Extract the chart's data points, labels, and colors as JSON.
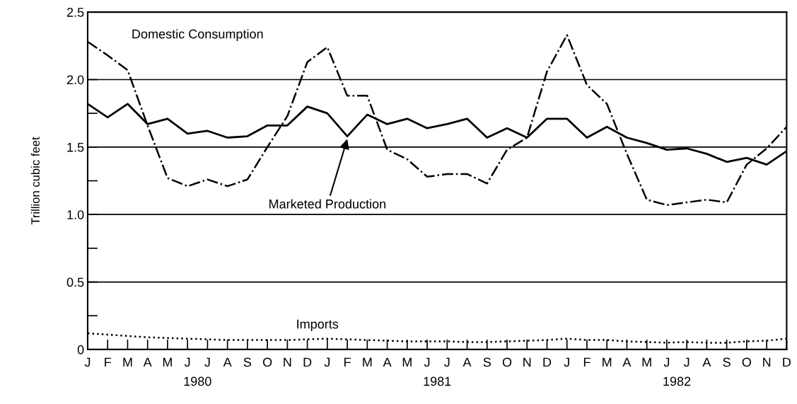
{
  "chart_data": {
    "type": "line",
    "ylabel": "Trillion cubic feet",
    "categories": [
      "J",
      "F",
      "M",
      "A",
      "M",
      "J",
      "J",
      "A",
      "S",
      "O",
      "N",
      "D",
      "J",
      "F",
      "M",
      "A",
      "M",
      "J",
      "J",
      "A",
      "S",
      "O",
      "N",
      "D",
      "J",
      "F",
      "M",
      "A",
      "M",
      "J",
      "J",
      "A",
      "S",
      "O",
      "N",
      "D"
    ],
    "series": [
      {
        "name": "Domestic Consumption",
        "color": "#000000",
        "line_style": "dashdot",
        "values": [
          2.28,
          2.18,
          2.07,
          1.66,
          1.27,
          1.21,
          1.26,
          1.21,
          1.26,
          1.5,
          1.73,
          2.13,
          2.24,
          1.88,
          1.88,
          1.48,
          1.41,
          1.28,
          1.3,
          1.3,
          1.23,
          1.48,
          1.57,
          2.06,
          2.33,
          1.96,
          1.82,
          1.45,
          1.11,
          1.07,
          1.09,
          1.11,
          1.09,
          1.37,
          1.49,
          1.65
        ]
      },
      {
        "name": "Marketed Production",
        "color": "#000000",
        "line_style": "solid",
        "values": [
          1.82,
          1.72,
          1.82,
          1.67,
          1.71,
          1.6,
          1.62,
          1.57,
          1.58,
          1.66,
          1.66,
          1.8,
          1.75,
          1.58,
          1.74,
          1.67,
          1.71,
          1.64,
          1.67,
          1.71,
          1.57,
          1.64,
          1.57,
          1.71,
          1.71,
          1.57,
          1.65,
          1.57,
          1.53,
          1.48,
          1.49,
          1.45,
          1.39,
          1.42,
          1.37,
          1.47
        ]
      },
      {
        "name": "Imports",
        "color": "#000000",
        "line_style": "dotted",
        "values": [
          0.12,
          0.11,
          0.1,
          0.09,
          0.085,
          0.08,
          0.075,
          0.07,
          0.07,
          0.07,
          0.07,
          0.075,
          0.08,
          0.075,
          0.07,
          0.065,
          0.06,
          0.06,
          0.06,
          0.055,
          0.055,
          0.06,
          0.065,
          0.07,
          0.08,
          0.07,
          0.07,
          0.06,
          0.055,
          0.05,
          0.055,
          0.05,
          0.05,
          0.06,
          0.065,
          0.08
        ]
      }
    ],
    "ylim": [
      0,
      2.5
    ],
    "yticks": [
      0,
      {
        "value": 0.25,
        "label": null
      },
      0.5,
      {
        "value": 0.75,
        "label": null
      },
      {
        "value": 1,
        "label": "1.0"
      },
      {
        "value": 1.25,
        "label": null
      },
      1.5,
      {
        "value": 1.75,
        "label": null
      },
      {
        "value": 2,
        "label": "2.0"
      },
      2.5
    ],
    "annotations": [
      "1980",
      "1981",
      "1982"
    ],
    "grid": "y",
    "legend": false,
    "marker": "none"
  }
}
